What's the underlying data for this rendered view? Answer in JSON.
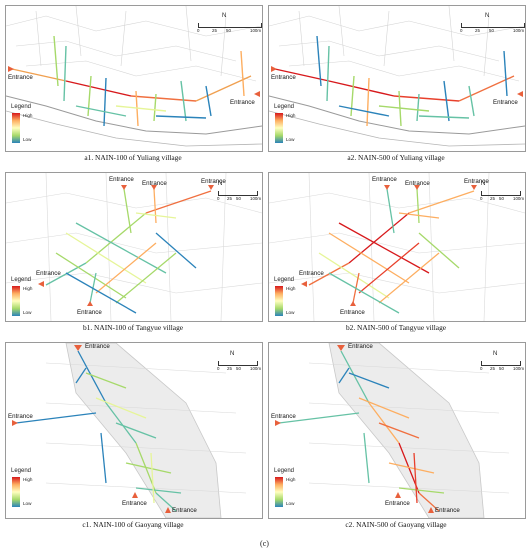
{
  "figure_label": "(c)",
  "legend": {
    "title": "Legend",
    "high": "High",
    "low": "Low"
  },
  "scale": {
    "labels": [
      "0",
      "25",
      "50",
      "100m"
    ],
    "north": "N"
  },
  "entrance_label": "Entrance",
  "colors": {
    "high": "#d7191c",
    "mid": "#ffffbf",
    "low": "#2b83ba",
    "arrow": "#e8603c"
  },
  "panels": [
    {
      "id": "a1",
      "caption": "a1. NAIN-100 of Yuliang village"
    },
    {
      "id": "a2",
      "caption": "a2. NAIN-500 of Yuliang village"
    },
    {
      "id": "b1",
      "caption": "b1. NAIN-100 of Tangyue village"
    },
    {
      "id": "b2",
      "caption": "b2. NAIN-500 of Tangyue village"
    },
    {
      "id": "c1",
      "caption": "c1. NAIN-100 of Gaoyang village"
    },
    {
      "id": "c2",
      "caption": "c2. NAIN-500 of Gaoyang village"
    }
  ]
}
